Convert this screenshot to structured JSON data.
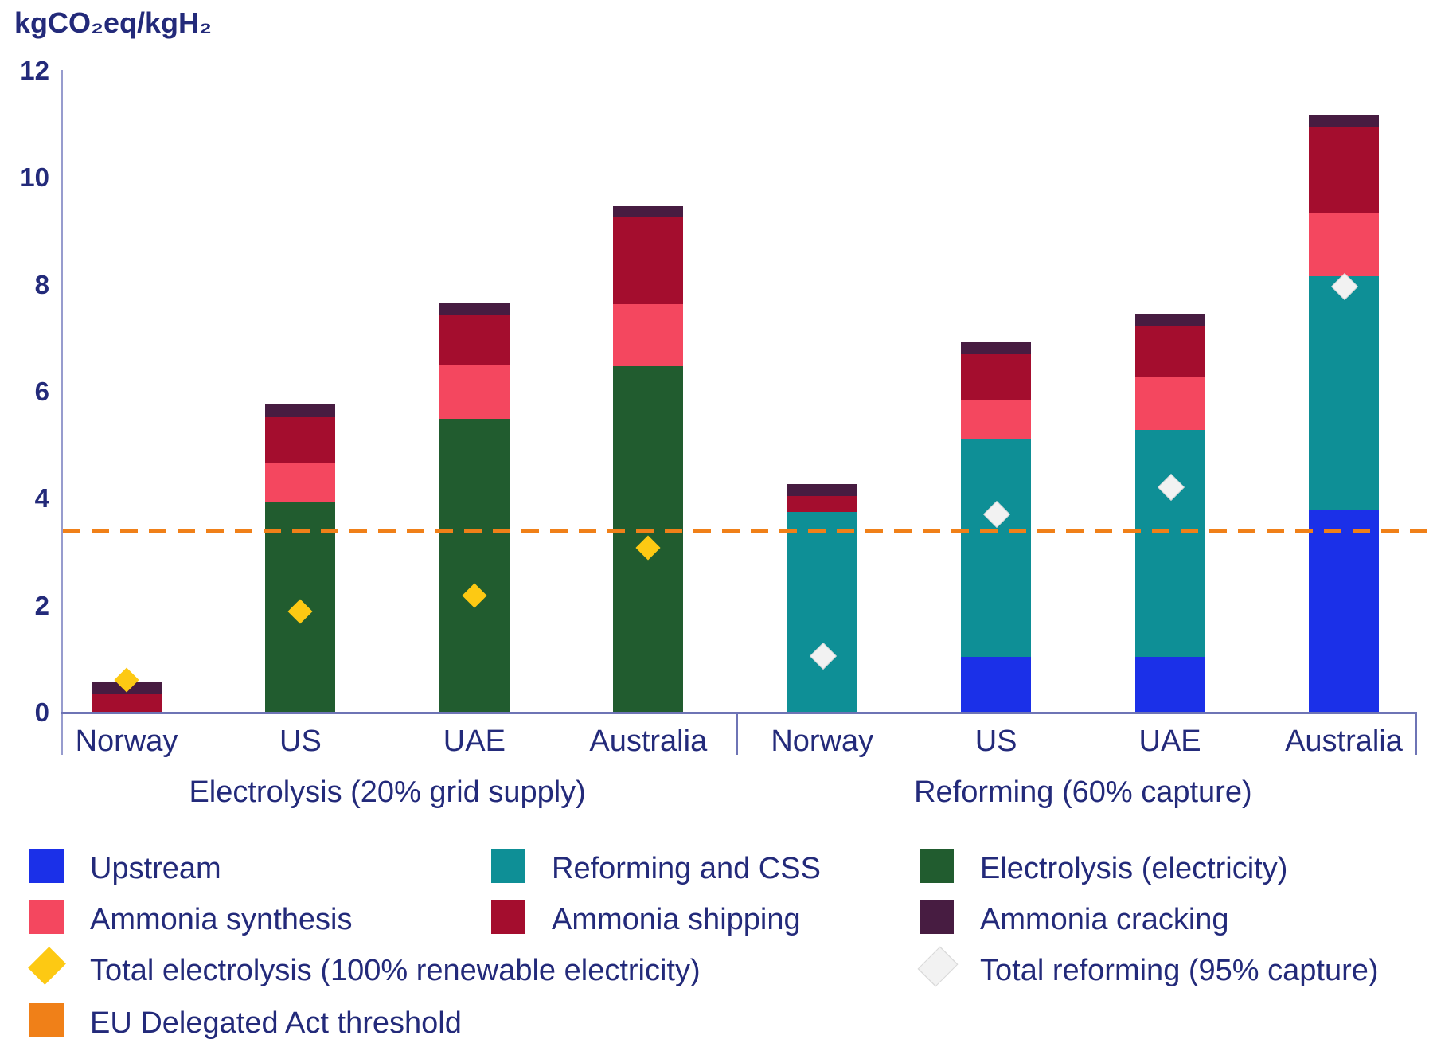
{
  "chart_data": {
    "type": "bar",
    "subtype": "stacked-bar-grouped",
    "y_axis": {
      "label": "kgCO₂eq/kgH₂",
      "min": 0,
      "max": 12,
      "ticks": [
        0,
        2,
        4,
        6,
        8,
        10,
        12
      ]
    },
    "series_order": [
      "upstream",
      "reforming_ccs",
      "electrolysis",
      "ammonia_synthesis",
      "ammonia_shipping",
      "ammonia_cracking"
    ],
    "series_colors": {
      "upstream": "#1b30e8",
      "reforming_ccs": "#0e8f96",
      "electrolysis": "#215c2f",
      "ammonia_synthesis": "#f4475f",
      "ammonia_shipping": "#a40d2e",
      "ammonia_cracking": "#471c41"
    },
    "marker_colors": {
      "total_electrolysis_renewable": "#fdc913",
      "total_reforming_95": "#f2f2f2",
      "total_reforming_95_border": "#d9d9d9"
    },
    "groups": [
      {
        "label": "Electrolysis (20% grid supply)",
        "marker_series": "total_electrolysis_renewable",
        "bars": [
          {
            "country": "Norway",
            "segments": {
              "upstream": 0,
              "reforming_ccs": 0,
              "electrolysis": 0,
              "ammonia_synthesis": 0,
              "ammonia_shipping": 0.33,
              "ammonia_cracking": 0.24
            },
            "total": 0.57,
            "marker_value": 0.6
          },
          {
            "country": "US",
            "segments": {
              "upstream": 0,
              "reforming_ccs": 0,
              "electrolysis": 3.91,
              "ammonia_synthesis": 0.73,
              "ammonia_shipping": 0.87,
              "ammonia_cracking": 0.25
            },
            "total": 5.76,
            "marker_value": 1.87
          },
          {
            "country": "UAE",
            "segments": {
              "upstream": 0,
              "reforming_ccs": 0,
              "electrolysis": 5.48,
              "ammonia_synthesis": 1.01,
              "ammonia_shipping": 0.92,
              "ammonia_cracking": 0.25
            },
            "total": 7.66,
            "marker_value": 2.17
          },
          {
            "country": "Australia",
            "segments": {
              "upstream": 0,
              "reforming_ccs": 0,
              "electrolysis": 6.46,
              "ammonia_synthesis": 1.16,
              "ammonia_shipping": 1.62,
              "ammonia_cracking": 0.22
            },
            "total": 9.46,
            "marker_value": 3.07
          }
        ]
      },
      {
        "label": "Reforming (60% capture)",
        "marker_series": "total_reforming_95",
        "bars": [
          {
            "country": "Norway",
            "segments": {
              "upstream": 0,
              "reforming_ccs": 3.73,
              "electrolysis": 0,
              "ammonia_synthesis": 0,
              "ammonia_shipping": 0.3,
              "ammonia_cracking": 0.23
            },
            "total": 4.26,
            "marker_value": 1.06
          },
          {
            "country": "US",
            "segments": {
              "upstream": 1.03,
              "reforming_ccs": 4.07,
              "electrolysis": 0,
              "ammonia_synthesis": 0.72,
              "ammonia_shipping": 0.86,
              "ammonia_cracking": 0.25
            },
            "total": 6.93,
            "marker_value": 3.7
          },
          {
            "country": "UAE",
            "segments": {
              "upstream": 1.03,
              "reforming_ccs": 4.24,
              "electrolysis": 0,
              "ammonia_synthesis": 0.99,
              "ammonia_shipping": 0.94,
              "ammonia_cracking": 0.23
            },
            "total": 7.43,
            "marker_value": 4.21
          },
          {
            "country": "Australia",
            "segments": {
              "upstream": 3.78,
              "reforming_ccs": 4.36,
              "electrolysis": 0,
              "ammonia_synthesis": 1.19,
              "ammonia_shipping": 1.61,
              "ammonia_cracking": 0.23
            },
            "total": 11.17,
            "marker_value": 7.96
          }
        ]
      }
    ],
    "threshold": {
      "label": "EU Delegated Act threshold",
      "value": 3.4,
      "color": "#f08018",
      "style": "dashed"
    },
    "legend_position": "bottom"
  },
  "legend": {
    "items": [
      {
        "label": "Upstream",
        "marker": "square",
        "color": "#1b30e8",
        "col": 0,
        "row": 0
      },
      {
        "label": "Reforming and CSS",
        "marker": "square",
        "color": "#0e8f96",
        "col": 1,
        "row": 0
      },
      {
        "label": "Electrolysis (electricity)",
        "marker": "square",
        "color": "#215c2f",
        "col": 2,
        "row": 0
      },
      {
        "label": "Ammonia synthesis",
        "marker": "square",
        "color": "#f4475f",
        "col": 0,
        "row": 1
      },
      {
        "label": "Ammonia shipping",
        "marker": "square",
        "color": "#a40d2e",
        "col": 1,
        "row": 1
      },
      {
        "label": "Ammonia cracking",
        "marker": "square",
        "color": "#471c41",
        "col": 2,
        "row": 1
      },
      {
        "label": "Total electrolysis (100% renewable electricity)",
        "marker": "diamond",
        "color": "#fdc913",
        "border": "#fdc913",
        "col": 0,
        "row": 2
      },
      {
        "label": "Total reforming (95% capture)",
        "marker": "diamond",
        "color": "#f2f2f2",
        "border": "#d9d9d9",
        "col": 2,
        "row": 2
      },
      {
        "label": "EU Delegated Act threshold",
        "marker": "square",
        "color": "#f08018",
        "col": 0,
        "row": 3
      }
    ]
  }
}
